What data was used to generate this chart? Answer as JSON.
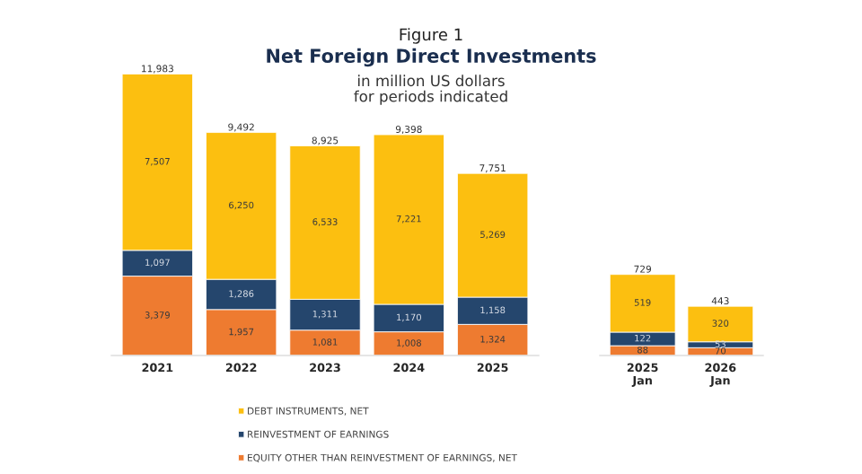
{
  "chart_data": [
    {
      "type": "bar",
      "title": "Figure 1\nNet Foreign Direct Investments",
      "subtitle": "in million US dollars\nfor periods indicated",
      "stacked": true,
      "legend": "bottom",
      "categories": [
        "2021",
        "2022",
        "2023",
        "2024",
        "2025"
      ],
      "series": [
        {
          "name": "EQUITY OTHER THAN REINVESTMENT OF EARNINGS, NET",
          "color": "#ee7b30",
          "values": [
            3379,
            1957,
            1081,
            1008,
            1324
          ],
          "value_labels": [
            "3,379",
            "1,957",
            "1,081",
            "1,008",
            "1,324"
          ]
        },
        {
          "name": "REINVESTMENT OF EARNINGS",
          "color": "#25466d",
          "values": [
            1097,
            1286,
            1311,
            1170,
            1158
          ],
          "value_labels": [
            "1,097",
            "1,286",
            "1,311",
            "1,170",
            "1,158"
          ]
        },
        {
          "name": "DEBT INSTRUMENTS, NET",
          "color": "#fcbf10",
          "values": [
            7507,
            6250,
            6533,
            7221,
            5269
          ],
          "value_labels": [
            "7,507",
            "6,250",
            "6,533",
            "7,221",
            "5,269"
          ]
        }
      ],
      "totals": [
        "11,983",
        "9,492",
        "8,925",
        "9,398",
        "7,751"
      ]
    },
    {
      "type": "bar",
      "stacked": true,
      "categories": [
        "2025\nJan",
        "2026\nJan"
      ],
      "series": [
        {
          "color": "#ee7b30",
          "values": [
            88,
            70
          ],
          "value_labels": [
            "88",
            "70"
          ]
        },
        {
          "color": "#25466d",
          "values": [
            122,
            53
          ],
          "value_labels": [
            "122",
            "53"
          ]
        },
        {
          "color": "#fcbf10",
          "values": [
            519,
            320
          ],
          "value_labels": [
            "519",
            "320"
          ]
        }
      ],
      "totals": [
        "729",
        "443"
      ]
    }
  ]
}
